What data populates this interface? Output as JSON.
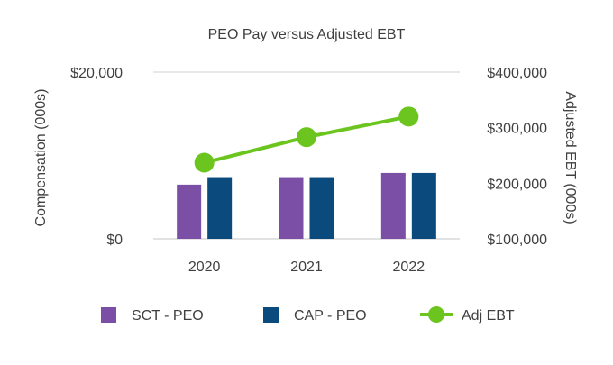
{
  "chart_data": {
    "type": "bar",
    "title": "PEO Pay versus Adjusted EBT",
    "categories": [
      "2020",
      "2021",
      "2022"
    ],
    "y_left": {
      "label": "Compensation (000s)",
      "lim": [
        0,
        20000
      ],
      "ticks": [
        0,
        20000
      ],
      "tick_labels": [
        "$0",
        "$20,000"
      ]
    },
    "y_right": {
      "label": "Adjusted EBT (000s)",
      "lim": [
        100000,
        400000
      ],
      "ticks": [
        100000,
        200000,
        300000,
        400000
      ],
      "tick_labels": [
        "$100,000",
        "$200,000",
        "$300,000",
        "$400,000"
      ]
    },
    "series": [
      {
        "name": "SCT - PEO",
        "type": "bar",
        "axis": "left",
        "color": "#7B4FA6",
        "values": [
          6500,
          7400,
          7900
        ]
      },
      {
        "name": "CAP - PEO",
        "type": "bar",
        "axis": "left",
        "color": "#0A4A7C",
        "values": [
          7400,
          7400,
          7900
        ]
      },
      {
        "name": "Adj EBT",
        "type": "line",
        "axis": "right",
        "color": "#6CC51E",
        "values": [
          237000,
          283000,
          320000
        ]
      }
    ],
    "grid": "top-line-only",
    "legend_position": "bottom"
  }
}
